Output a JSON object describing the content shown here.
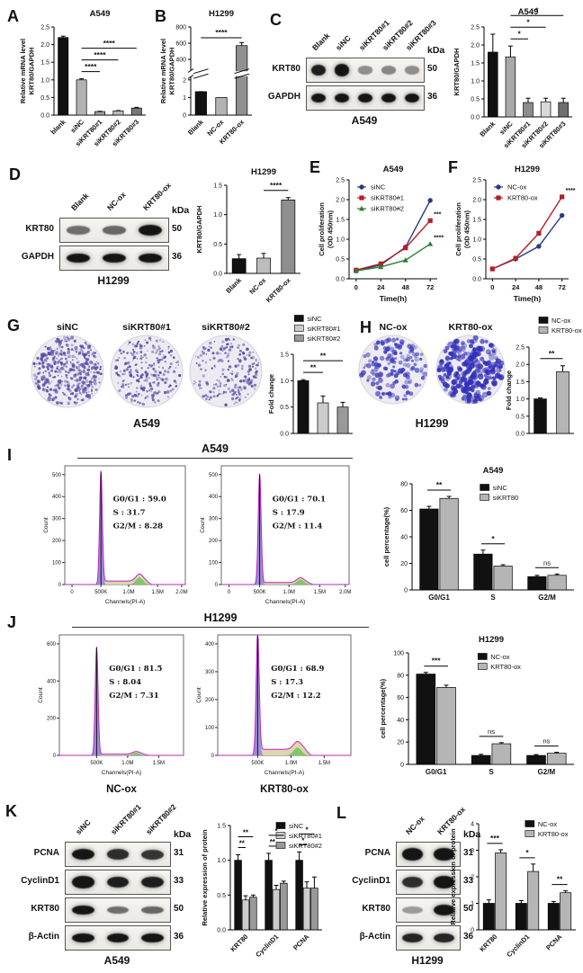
{
  "panels": {
    "A": "A",
    "B": "B",
    "C": "C",
    "D": "D",
    "E": "E",
    "F": "F",
    "G": "G",
    "H": "H",
    "I": "I",
    "J": "J",
    "K": "K",
    "L": "L"
  },
  "flow_titles": {
    "I": "A549",
    "J": "H1299"
  },
  "colony": {
    "G": {
      "cellline": "A549",
      "dishes": [
        {
          "label": "siNC",
          "n": 430,
          "rmin": 0.8,
          "rmax": 2.0,
          "color": "#574ba6",
          "seed": 11
        },
        {
          "label": "siKRT80#1",
          "n": 250,
          "rmin": 0.8,
          "rmax": 1.8,
          "color": "#574ba6",
          "seed": 12
        },
        {
          "label": "siKRT80#2",
          "n": 215,
          "rmin": 0.8,
          "rmax": 1.8,
          "color": "#574ba6",
          "seed": 13
        }
      ]
    },
    "H": {
      "cellline": "H1299",
      "dishes": [
        {
          "label": "NC-ox",
          "n": 150,
          "rmin": 1.4,
          "rmax": 3.0,
          "color": "#3a39bd",
          "seed": 14
        },
        {
          "label": "KRT80-ox",
          "n": 270,
          "rmin": 1.6,
          "rmax": 3.4,
          "color": "#3230b8",
          "seed": 15
        }
      ]
    }
  },
  "blots": [
    {
      "id": "Cblot",
      "kda_header": "kDa",
      "cellline": "A549",
      "lanes": [
        "Blank",
        "siNC",
        "siKRT80#1",
        "siKRT80#2",
        "siKRT80#3"
      ],
      "rows": [
        {
          "name": "KRT80",
          "kda": "50",
          "bandH": 11,
          "bands": [
            0.95,
            1,
            0.25,
            0.3,
            0.25
          ]
        },
        {
          "name": "GAPDH",
          "kda": "36",
          "bandH": 9,
          "bands": [
            1,
            1,
            1,
            1,
            1
          ]
        }
      ]
    },
    {
      "id": "Dblot",
      "kda_header": "kDa",
      "cellline": "H1299",
      "lanes": [
        "Blank",
        "NC-ox",
        "KRT80-ox"
      ],
      "rows": [
        {
          "name": "KRT80",
          "kda": "50",
          "bandH": 10,
          "bands": [
            0.45,
            0.5,
            1
          ]
        },
        {
          "name": "GAPDH",
          "kda": "36",
          "bandH": 9,
          "bands": [
            1,
            1,
            1
          ]
        }
      ]
    },
    {
      "id": "Kblot",
      "kda_header": "kDa",
      "cellline": "A549",
      "lanes": [
        "siNC",
        "siKRT80#1",
        "siKRT80#2"
      ],
      "rows": [
        {
          "name": "PCNA",
          "kda": "31",
          "bandH": 10,
          "bands": [
            1,
            0.85,
            0.8
          ]
        },
        {
          "name": "CyclinD1",
          "kda": "33",
          "bandH": 11,
          "bands": [
            1,
            0.95,
            0.95
          ]
        },
        {
          "name": "KRT80",
          "kda": "50",
          "bandH": 9,
          "bands": [
            1,
            0.45,
            0.5
          ]
        },
        {
          "name": "β-Actin",
          "kda": "36",
          "bandH": 9,
          "bands": [
            1,
            1,
            1
          ]
        }
      ]
    },
    {
      "id": "Lblot",
      "kda_header": "kDa",
      "cellline": "H1299",
      "lanes": [
        "NC-ox",
        "KRT80-ox"
      ],
      "rows": [
        {
          "name": "PCNA",
          "kda": "31",
          "bandH": 11,
          "bands": [
            1,
            1
          ]
        },
        {
          "name": "CyclinD1",
          "kda": "33",
          "bandH": 11,
          "bands": [
            0.85,
            1
          ]
        },
        {
          "name": "KRT80",
          "kda": "50",
          "bandH": 10,
          "bands": [
            0.18,
            1
          ]
        },
        {
          "name": "β-Actin",
          "kda": "36",
          "bandH": 9,
          "bands": [
            0.9,
            0.9
          ]
        }
      ]
    }
  ],
  "chart_data": [
    {
      "id": "A",
      "type": "bar",
      "title": "A549",
      "ylabel": "Relative mRNA level\nKRT80/GAPDH",
      "ylim": [
        0,
        2.5
      ],
      "yticks": [
        0,
        0.5,
        1,
        1.5,
        2,
        2.5
      ],
      "ylabels": [
        "0.0",
        "0.5",
        "1.0",
        "1.5",
        "2.0",
        "2.5"
      ],
      "categories": [
        "blank",
        "siNC",
        "siKRT80#1",
        "siKRT80#2",
        "siKRT80#3"
      ],
      "values": [
        2.2,
        1.0,
        0.1,
        0.12,
        0.2
      ],
      "errors": [
        0.04,
        0.03,
        0.01,
        0.01,
        0.02
      ],
      "colors": [
        "#111111",
        "#b3b3b3",
        "#9e9e9e",
        "#b9b9b9",
        "#777777"
      ],
      "sig": [
        {
          "i": 1,
          "j": 2,
          "s": "****",
          "l": 0
        },
        {
          "i": 1,
          "j": 3,
          "s": "****",
          "l": 1
        },
        {
          "i": 1,
          "j": 4,
          "s": "****",
          "l": 2
        }
      ]
    },
    {
      "id": "B",
      "type": "bar_broken",
      "title": "H1299",
      "ylabel": "Relative mRNA level\nKRT80/GAPDH",
      "lower": {
        "lim": [
          0,
          2
        ],
        "ticks": [
          0,
          1,
          2
        ],
        "labels": [
          "0",
          "1",
          "2"
        ]
      },
      "upper": {
        "lim": [
          300,
          800
        ],
        "ticks": [
          400,
          600,
          800
        ],
        "labels": [
          "400",
          "600",
          "800"
        ]
      },
      "categories": [
        "Blank",
        "NC-ox",
        "KRT80-ox"
      ],
      "values": [
        2.1,
        1.0,
        570
      ],
      "errors": [
        0.06,
        0.05,
        38
      ],
      "colors": [
        "#111111",
        "#b3b3b3",
        "#8f8f8f"
      ],
      "sig": [
        {
          "i": 0,
          "j": 2,
          "s": "****",
          "l": 0
        }
      ]
    },
    {
      "id": "Cbar",
      "type": "bar",
      "title": "A549",
      "ylabel": "KRT80/GAPDH",
      "ylim": [
        0,
        2.5
      ],
      "yticks": [
        0,
        0.5,
        1,
        1.5,
        2,
        2.5
      ],
      "ylabels": [
        "0.0",
        "0.5",
        "1.0",
        "1.5",
        "2.0",
        "2.5"
      ],
      "categories": [
        "Blank",
        "siNC",
        "siKRT80#1",
        "siKRT80#2",
        "siKRT80#3"
      ],
      "values": [
        1.8,
        1.67,
        0.4,
        0.42,
        0.4
      ],
      "errors": [
        0.5,
        0.3,
        0.12,
        0.1,
        0.12
      ],
      "colors": [
        "#111111",
        "#a9a9a9",
        "#8c8c8c",
        "#d9d9d9",
        "#6e6e6e"
      ],
      "sig": [
        {
          "i": 1,
          "j": 2,
          "s": "*",
          "l": 0
        },
        {
          "i": 1,
          "j": 3,
          "s": "*",
          "l": 1
        },
        {
          "i": 1,
          "j": 4,
          "s": "*",
          "l": 2
        }
      ]
    },
    {
      "id": "Dbar",
      "type": "bar",
      "title": "H1299",
      "ylabel": "KRT80/GAPDH",
      "ylim": [
        0,
        1.5
      ],
      "yticks": [
        0,
        0.5,
        1,
        1.5
      ],
      "ylabels": [
        "0.0",
        "0.5",
        "1.0",
        "1.5"
      ],
      "categories": [
        "Blank",
        "NC-ox",
        "KRT80-ox"
      ],
      "values": [
        0.25,
        0.26,
        1.25
      ],
      "errors": [
        0.07,
        0.08,
        0.04
      ],
      "colors": [
        "#111111",
        "#bdbdbd",
        "#8f8f8f"
      ],
      "sig": [
        {
          "i": 1,
          "j": 2,
          "s": "****",
          "l": 0
        }
      ]
    },
    {
      "id": "E",
      "type": "line",
      "title": "A549",
      "ylabel": "Cell proliferation\n(OD 450nm)",
      "xlabel": "Time(h)",
      "x": [
        0,
        24,
        48,
        72
      ],
      "ylim": [
        0,
        2.5
      ],
      "yticks": [
        0,
        0.5,
        1,
        1.5,
        2,
        2.5
      ],
      "ylabels": [
        "0.0",
        "0.5",
        "1.0",
        "1.5",
        "2.0",
        "2.5"
      ],
      "series": [
        {
          "name": "siNC",
          "color": "#2c3a85",
          "marker": "circle",
          "values": [
            0.2,
            0.35,
            0.8,
            1.98
          ]
        },
        {
          "name": "siKRT80#1",
          "color": "#b02126",
          "marker": "square",
          "values": [
            0.22,
            0.38,
            0.78,
            1.47
          ],
          "endnote": "***"
        },
        {
          "name": "siKRT80#2",
          "color": "#2e7d36",
          "marker": "triangle",
          "values": [
            0.2,
            0.3,
            0.47,
            0.88
          ],
          "endnote": "****"
        }
      ]
    },
    {
      "id": "F",
      "type": "line",
      "title": "H1299",
      "ylabel": "Cell proliferation\n(OD 450nm)",
      "xlabel": "Time(h)",
      "x": [
        0,
        24,
        48,
        72
      ],
      "ylim": [
        0,
        2.5
      ],
      "yticks": [
        0,
        0.5,
        1,
        1.5,
        2,
        2.5
      ],
      "ylabels": [
        "0.0",
        "0.5",
        "1.0",
        "1.5",
        "2.0",
        "2.5"
      ],
      "series": [
        {
          "name": "NC-ox",
          "color": "#2c3a85",
          "marker": "circle",
          "values": [
            0.25,
            0.5,
            0.82,
            1.6
          ]
        },
        {
          "name": "KRT80-ox",
          "color": "#b02126",
          "marker": "square",
          "values": [
            0.25,
            0.52,
            1.15,
            2.07
          ],
          "endnote": "****"
        }
      ]
    },
    {
      "id": "Gbar",
      "type": "bar",
      "ylabel": "Fold change",
      "ylim": [
        0,
        1.5
      ],
      "yticks": [
        0,
        0.5,
        1,
        1.5
      ],
      "ylabels": [
        "0.0",
        "0.5",
        "1.0",
        "1.5"
      ],
      "categories": [
        "siNC",
        "siKRT80#1",
        "siKRT80#2"
      ],
      "values": [
        1.0,
        0.58,
        0.5
      ],
      "errors": [
        0.02,
        0.13,
        0.09
      ],
      "colors": [
        "#111111",
        "#cccccc",
        "#999999"
      ],
      "legend": [
        "siNC",
        "siKRT80#1",
        "siKRT80#2"
      ],
      "sig": [
        {
          "i": 0,
          "j": 1,
          "s": "**",
          "l": 0
        },
        {
          "i": 0,
          "j": 2,
          "s": "**",
          "l": 1
        }
      ]
    },
    {
      "id": "Hbar",
      "type": "bar",
      "ylabel": "Fold change",
      "ylim": [
        0,
        2.5
      ],
      "yticks": [
        0,
        0.5,
        1,
        1.5,
        2,
        2.5
      ],
      "ylabels": [
        "0.0",
        "0.5",
        "1.0",
        "1.5",
        "2.0",
        "2.5"
      ],
      "categories": [
        "NC-ox",
        "KRT80-ox"
      ],
      "values": [
        1.0,
        1.79
      ],
      "errors": [
        0.03,
        0.17
      ],
      "colors": [
        "#111111",
        "#b5b5b5"
      ],
      "legend": [
        "NC-ox",
        "KRT80-ox"
      ],
      "sig": [
        {
          "i": 0,
          "j": 1,
          "s": "**",
          "l": 0
        }
      ]
    },
    {
      "id": "Ibar",
      "type": "bar_grouped",
      "title": "A549",
      "ylabel": "cell percentage(%)",
      "ylim": [
        0,
        80
      ],
      "yticks": [
        0,
        20,
        40,
        60,
        80
      ],
      "ylabels": [
        "0",
        "20",
        "40",
        "60",
        "80"
      ],
      "categories": [
        "G0/G1",
        "S",
        "G2/M"
      ],
      "series": [
        {
          "name": "siNC",
          "color": "#111111",
          "values": [
            61,
            27,
            10
          ],
          "errors": [
            2,
            3,
            1
          ]
        },
        {
          "name": "siKRT80",
          "color": "#b5b5b5",
          "values": [
            69,
            18,
            11
          ],
          "errors": [
            1.5,
            1,
            1
          ]
        }
      ],
      "gsig": [
        "**",
        "*",
        "ns"
      ]
    },
    {
      "id": "Jbar",
      "type": "bar_grouped",
      "title": "H1299",
      "ylabel": "cell percentage(%)",
      "ylim": [
        0,
        100
      ],
      "yticks": [
        0,
        20,
        40,
        60,
        80,
        100
      ],
      "ylabels": [
        "0",
        "20",
        "40",
        "60",
        "80",
        "100"
      ],
      "categories": [
        "G0/G1",
        "S",
        "G2/M"
      ],
      "series": [
        {
          "name": "NC-ox",
          "color": "#111111",
          "values": [
            81,
            8,
            8
          ],
          "errors": [
            1.5,
            1,
            0.8
          ]
        },
        {
          "name": "KRT80-ox",
          "color": "#b5b5b5",
          "values": [
            69,
            18.5,
            10
          ],
          "errors": [
            2,
            1,
            0.8
          ]
        }
      ],
      "gsig": [
        "***",
        "ns",
        "ns"
      ]
    },
    {
      "id": "Kbar",
      "type": "bar_grouped",
      "ylabel": "Relative expression of protein",
      "ylim": [
        0,
        1.5
      ],
      "yticks": [
        0,
        0.5,
        1,
        1.5
      ],
      "ylabels": [
        "0.0",
        "0.5",
        "1.0",
        "1.5"
      ],
      "categories": [
        "KRT80",
        "CyclinD1",
        "PCNA"
      ],
      "series": [
        {
          "name": "siNC",
          "color": "#111111",
          "values": [
            1,
            1,
            1
          ],
          "errors": [
            0.08,
            0.1,
            0.12
          ]
        },
        {
          "name": "siKRT80#1",
          "color": "#cccccc",
          "values": [
            0.43,
            0.58,
            0.6
          ],
          "errors": [
            0.06,
            0.06,
            0.09
          ]
        },
        {
          "name": "siKRT80#2",
          "color": "#999999",
          "values": [
            0.47,
            0.67,
            0.6
          ],
          "errors": [
            0.03,
            0.03,
            0.16
          ]
        }
      ],
      "psig": [
        {
          "g": 0,
          "i": 0,
          "j": 1,
          "s": "**",
          "l": 0
        },
        {
          "g": 0,
          "i": 0,
          "j": 2,
          "s": "**",
          "l": 1
        },
        {
          "g": 1,
          "i": 0,
          "j": 1,
          "s": "**",
          "l": 0
        },
        {
          "g": 1,
          "i": 0,
          "j": 2,
          "s": "*",
          "l": 1
        },
        {
          "g": 2,
          "i": 0,
          "j": 1,
          "s": "*",
          "l": 0
        },
        {
          "g": 2,
          "i": 0,
          "j": 2,
          "s": "*",
          "l": 1
        }
      ]
    },
    {
      "id": "Lbar",
      "type": "bar_grouped",
      "ylabel": "Relative expression of protein",
      "ylim": [
        0,
        4
      ],
      "yticks": [
        0,
        1,
        2,
        3,
        4
      ],
      "ylabels": [
        "0",
        "1",
        "2",
        "3",
        "4"
      ],
      "categories": [
        "KRT80",
        "CyclinD1",
        "PCNA"
      ],
      "series": [
        {
          "name": "NC-ox",
          "color": "#111111",
          "values": [
            1,
            1,
            1
          ],
          "errors": [
            0.13,
            0.1,
            0.07
          ]
        },
        {
          "name": "KRT80-ox",
          "color": "#b5b5b5",
          "values": [
            2.9,
            2.2,
            1.4
          ],
          "errors": [
            0.12,
            0.28,
            0.07
          ]
        }
      ],
      "gsig": [
        "***",
        "*",
        "**"
      ]
    },
    {
      "id": "I1",
      "type": "flow",
      "ylabel": "Count",
      "xlabel": "Channels(PI-A)",
      "ymax": 500,
      "yticks": [
        0,
        100,
        200,
        300,
        400,
        500
      ],
      "xt": [
        {
          "f": 0.06,
          "l": "0"
        },
        {
          "f": 0.3,
          "l": "500K"
        },
        {
          "f": 0.53,
          "l": "1.0M"
        },
        {
          "f": 0.77,
          "l": "1.5M"
        },
        {
          "f": 0.97,
          "l": "2.0M"
        }
      ],
      "peak": 510,
      "p": 0.3,
      "g2": 0.62,
      "g2h": 32,
      "sh": 16,
      "stats": [
        "G0/G1 : 59.0",
        "S : 31.7",
        "G2/M : 8.28"
      ]
    },
    {
      "id": "I2",
      "type": "flow",
      "ylabel": "Count",
      "xlabel": "Channels(PI-A)",
      "ymax": 500,
      "yticks": [
        0,
        100,
        200,
        300,
        400,
        500
      ],
      "xt": [
        {
          "f": 0.06,
          "l": "0"
        },
        {
          "f": 0.3,
          "l": "500K"
        },
        {
          "f": 0.53,
          "l": "1.0M"
        },
        {
          "f": 0.77,
          "l": "1.5M"
        },
        {
          "f": 0.97,
          "l": "2.0M"
        }
      ],
      "peak": 500,
      "p": 0.3,
      "g2": 0.62,
      "g2h": 22,
      "sh": 9,
      "stats": [
        "G0/G1 : 70.1",
        "S : 17.9",
        "G2/M : 11.4"
      ]
    },
    {
      "id": "J1",
      "type": "flow",
      "ylabel": "Count",
      "xlabel": "Channels(PI-A)",
      "sublabel": "NC-ox",
      "ymax": 600,
      "yticks": [
        0,
        200,
        400,
        600
      ],
      "xt": [
        {
          "f": 0.3,
          "l": "500K"
        },
        {
          "f": 0.55,
          "l": "1.0M"
        },
        {
          "f": 0.8,
          "l": "1.5M"
        }
      ],
      "peak": 580,
      "p": 0.3,
      "g2": 0.62,
      "g2h": 14,
      "sh": 7,
      "stats": [
        "G0/G1 : 81.5",
        "S : 8.04",
        "G2/M : 7.31"
      ]
    },
    {
      "id": "J2",
      "type": "flow",
      "ylabel": "Count",
      "xlabel": "Channels(PI-A)",
      "sublabel": "KRT80-ox",
      "ymax": 400,
      "yticks": [
        0,
        100,
        200,
        300,
        400
      ],
      "xt": [
        {
          "f": 0.3,
          "l": "500K"
        },
        {
          "f": 0.55,
          "l": "1.0M"
        },
        {
          "f": 0.8,
          "l": "1.5M"
        }
      ],
      "peak": 430,
      "p": 0.3,
      "g2": 0.6,
      "g2h": 28,
      "sh": 22,
      "stats": [
        "G0/G1 : 68.9",
        "S : 17.3",
        "G2/M : 12.2"
      ]
    }
  ]
}
